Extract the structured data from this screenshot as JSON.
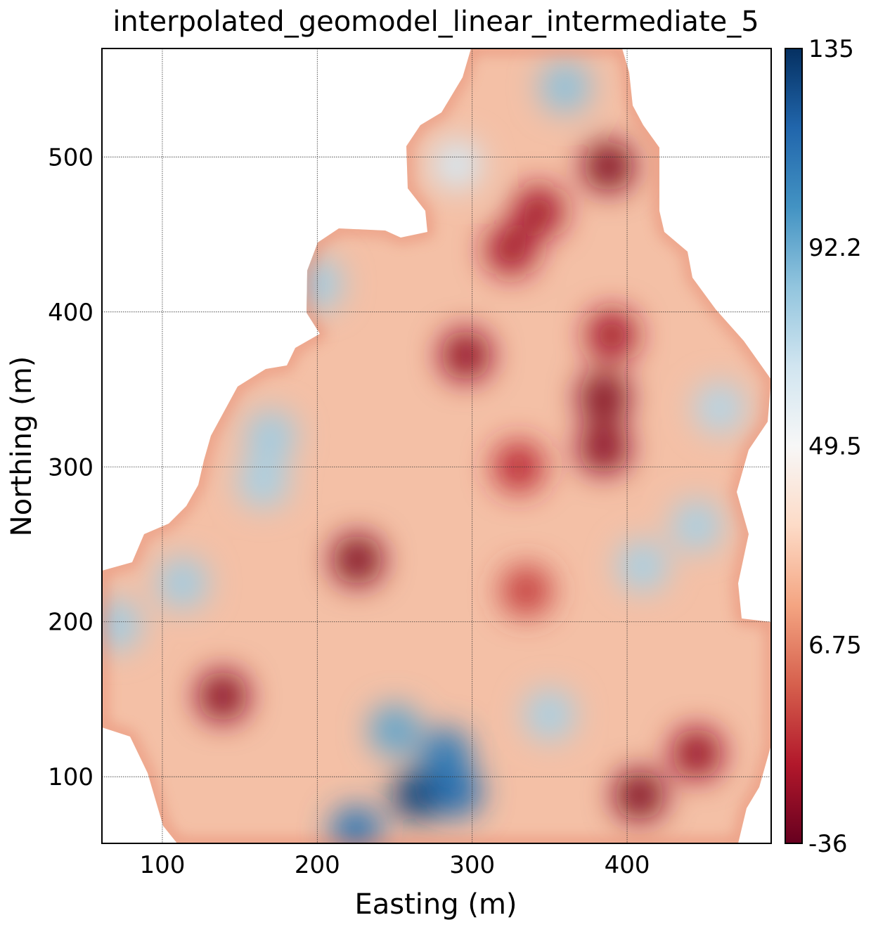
{
  "chart_data": {
    "type": "heatmap",
    "title": "interpolated_geomodel_linear_intermediate_5",
    "xlabel": "Easting (m)",
    "ylabel": "Northing (m)",
    "xlim": [
      61,
      493
    ],
    "ylim": [
      57,
      570
    ],
    "x_ticks": [
      100,
      200,
      300,
      400
    ],
    "y_ticks": [
      100,
      200,
      300,
      400,
      500
    ],
    "grid": true,
    "colormap": "RdBu",
    "colorbar": {
      "min": -36,
      "max": 135,
      "tick_values": [
        -36,
        6.75,
        49.5,
        92.2,
        135
      ],
      "tick_labels": [
        "-36",
        "6.75",
        "49.5",
        "92.2",
        "135"
      ]
    },
    "hotspots": [
      {
        "x": 226,
        "y": 240,
        "value": -30
      },
      {
        "x": 139,
        "y": 152,
        "value": -28
      },
      {
        "x": 388,
        "y": 494,
        "value": -30
      },
      {
        "x": 343,
        "y": 465,
        "value": -22
      },
      {
        "x": 325,
        "y": 440,
        "value": -22
      },
      {
        "x": 296,
        "y": 372,
        "value": -26
      },
      {
        "x": 385,
        "y": 345,
        "value": -30
      },
      {
        "x": 385,
        "y": 312,
        "value": -28
      },
      {
        "x": 390,
        "y": 385,
        "value": -22
      },
      {
        "x": 330,
        "y": 300,
        "value": -15
      },
      {
        "x": 335,
        "y": 220,
        "value": -10
      },
      {
        "x": 408,
        "y": 88,
        "value": -30
      },
      {
        "x": 445,
        "y": 115,
        "value": -25
      },
      {
        "x": 265,
        "y": 88,
        "value": 130
      },
      {
        "x": 290,
        "y": 90,
        "value": 115
      },
      {
        "x": 283,
        "y": 115,
        "value": 110
      },
      {
        "x": 225,
        "y": 65,
        "value": 112
      },
      {
        "x": 250,
        "y": 130,
        "value": 95
      },
      {
        "x": 200,
        "y": 418,
        "value": 80
      },
      {
        "x": 360,
        "y": 545,
        "value": 85
      },
      {
        "x": 290,
        "y": 495,
        "value": 65
      },
      {
        "x": 170,
        "y": 320,
        "value": 80
      },
      {
        "x": 165,
        "y": 290,
        "value": 78
      },
      {
        "x": 113,
        "y": 225,
        "value": 80
      },
      {
        "x": 70,
        "y": 198,
        "value": 80
      },
      {
        "x": 410,
        "y": 236,
        "value": 78
      },
      {
        "x": 445,
        "y": 262,
        "value": 78
      },
      {
        "x": 460,
        "y": 338,
        "value": 75
      },
      {
        "x": 350,
        "y": 140,
        "value": 78
      }
    ]
  }
}
